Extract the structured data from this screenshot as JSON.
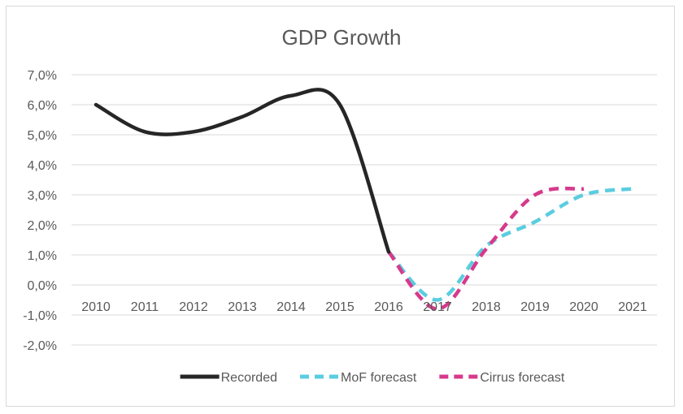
{
  "chart_data": {
    "type": "line",
    "title": "GDP Growth",
    "xlabel": "",
    "ylabel": "",
    "ylim": [
      -2.0,
      7.0
    ],
    "y_ticks": [
      "7,0%",
      "6,0%",
      "5,0%",
      "4,0%",
      "3,0%",
      "2,0%",
      "1,0%",
      "0,0%",
      "-1,0%",
      "-2,0%"
    ],
    "y_tick_values": [
      7,
      6,
      5,
      4,
      3,
      2,
      1,
      0,
      -1,
      -2
    ],
    "categories": [
      "2010",
      "2011",
      "2012",
      "2013",
      "2014",
      "2015",
      "2016",
      "2017",
      "2018",
      "2019",
      "2020",
      "2021"
    ],
    "grid": true,
    "legend_position": "bottom",
    "series": [
      {
        "name": "Recorded",
        "color": "#262626",
        "style": "solid",
        "x": [
          "2010",
          "2011",
          "2012",
          "2013",
          "2014",
          "2015",
          "2016"
        ],
        "values": [
          6.0,
          5.1,
          5.1,
          5.6,
          6.3,
          6.0,
          1.1
        ]
      },
      {
        "name": "MoF forecast",
        "color": "#5bcde0",
        "style": "dashed",
        "x": [
          "2016",
          "2017",
          "2018",
          "2019",
          "2020",
          "2021"
        ],
        "values": [
          1.1,
          -0.5,
          1.3,
          2.1,
          3.0,
          3.2
        ]
      },
      {
        "name": "Cirrus forecast",
        "color": "#d63a8c",
        "style": "dashed",
        "x": [
          "2016",
          "2017",
          "2018",
          "2019",
          "2020"
        ],
        "values": [
          1.1,
          -0.8,
          1.2,
          3.0,
          3.2
        ]
      }
    ]
  }
}
